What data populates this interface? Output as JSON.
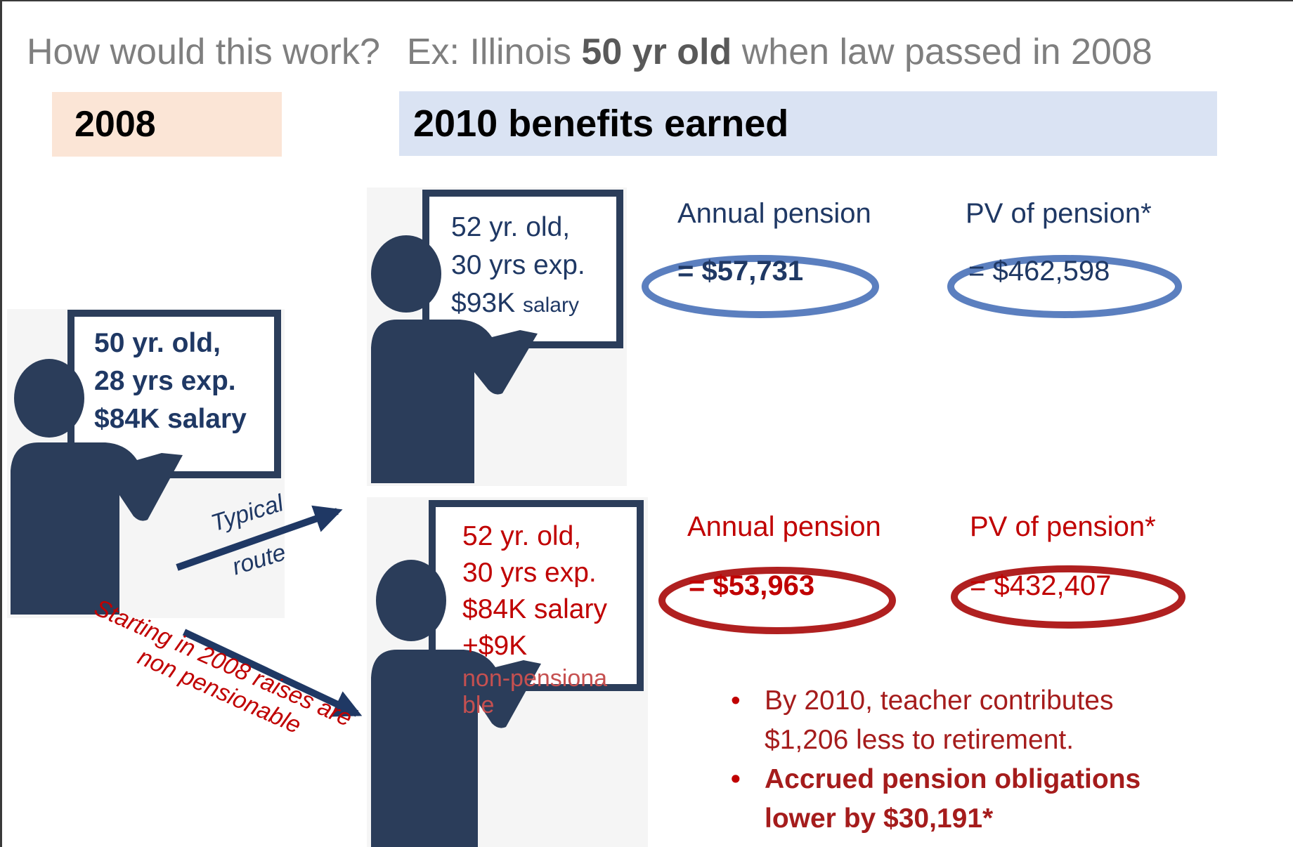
{
  "title": {
    "lead": "How would this work?",
    "example_prefix": "Ex: Illinois",
    "example_bold": "50 yr old",
    "example_suffix": "when law passed in 2008"
  },
  "headers": {
    "year_2008": "2008",
    "year_2010": "2010 benefits earned"
  },
  "teacher_2008": {
    "age": "50 yr. old,",
    "experience": "28 yrs exp.",
    "salary": "$84K salary"
  },
  "teacher_2010_typical": {
    "age": "52 yr. old,",
    "experience": "30 yrs exp.",
    "salary_amount": "$93K",
    "salary_word": "salary"
  },
  "teacher_2010_reform": {
    "age": "52 yr. old,",
    "experience": "30 yrs exp.",
    "salary": "$84K salary",
    "raise": "+$9K",
    "raise_note_1": "non-pensiona",
    "raise_note_2": "ble"
  },
  "typical_results": {
    "annual_label": "Annual pension",
    "annual_value": "= $57,731",
    "pv_label": "PV of pension*",
    "pv_value": "= $462,598"
  },
  "reform_results": {
    "annual_label": "Annual pension",
    "annual_value": "= $53,963",
    "pv_label": "PV of pension*",
    "pv_value": "= $432,407"
  },
  "arrows": {
    "typical_line1": "Typical",
    "typical_line2": "route",
    "reform_line1": "Starting in 2008 raises are",
    "reform_line2": "non pensionable"
  },
  "bullets": [
    "By 2010, teacher contributes $1,206 less to retirement.",
    "Accrued pension obligations lower by $30,191*"
  ],
  "colors": {
    "navy": "#1f3864",
    "figure": "#2b3d5a",
    "red": "#c00000",
    "blue_ellipse": "#5b7fbf",
    "red_ellipse": "#b02020",
    "header_2008_bg": "#fbe5d6",
    "header_2010_bg": "#dae3f3"
  }
}
